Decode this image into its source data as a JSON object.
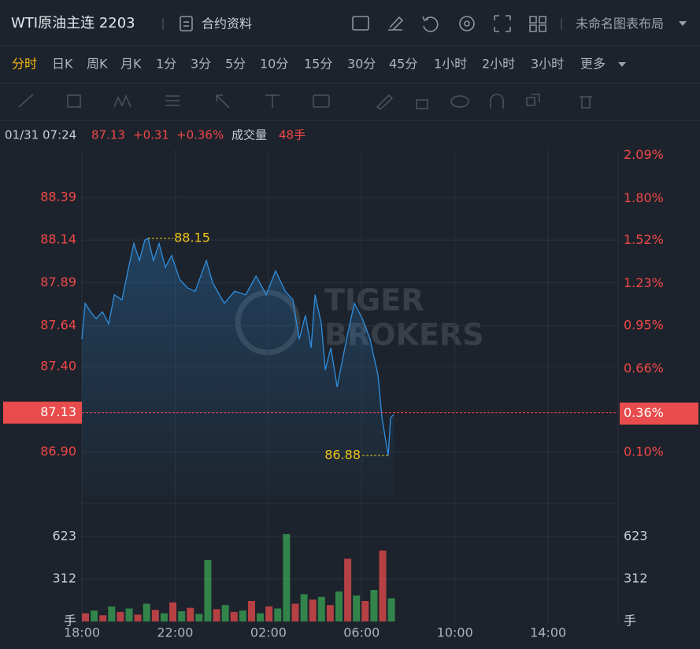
{
  "header": {
    "title": "WTI原油主连 2203",
    "contract_info": "合约资料",
    "layout_name": "未命名图表布局"
  },
  "timeframes": {
    "items": [
      "分时",
      "日K",
      "周K",
      "月K",
      "1分",
      "3分",
      "5分",
      "10分",
      "15分",
      "30分",
      "45分",
      "1小时",
      "2小时",
      "3小时",
      "更多"
    ],
    "active": 0
  },
  "info_bar": {
    "datetime": "01/31 07:24",
    "price": "87.13",
    "change": "+0.31",
    "change_pct": "+0.36%",
    "volume_label": "成交量",
    "volume": "48手"
  },
  "watermark": {
    "line1": "TIGER",
    "line2": "BROKERS"
  },
  "chart_data": [
    {
      "type": "line",
      "color": "#2e8fe0",
      "x": [
        0,
        0.14,
        0.37,
        0.61,
        0.88,
        1.15,
        1.39,
        1.72,
        1.96,
        2.23,
        2.47,
        2.7,
        2.84,
        3.07,
        3.31,
        3.58,
        3.85,
        4.19,
        4.53,
        4.86,
        5.34,
        5.61,
        6.11,
        6.55,
        7.03,
        7.47,
        7.91,
        8.31,
        8.72,
        9.05,
        9.32,
        9.59,
        9.83,
        10.0,
        10.27,
        10.44,
        10.68,
        10.95,
        11.28,
        11.49,
        11.69,
        12.03,
        12.36,
        12.7,
        12.87,
        13.04,
        13.14,
        13.24,
        13.38
      ],
      "values": [
        87.56,
        87.77,
        87.72,
        87.68,
        87.72,
        87.65,
        87.82,
        87.79,
        87.95,
        88.12,
        88.02,
        88.14,
        88.15,
        88.02,
        88.12,
        87.98,
        88.05,
        87.91,
        87.86,
        87.84,
        88.02,
        87.89,
        87.77,
        87.84,
        87.82,
        87.93,
        87.82,
        87.96,
        87.84,
        87.79,
        87.56,
        87.7,
        87.51,
        87.82,
        87.65,
        87.38,
        87.51,
        87.28,
        87.51,
        87.65,
        87.77,
        87.68,
        87.56,
        87.35,
        87.1,
        86.96,
        86.88,
        87.1,
        87.12
      ],
      "xlim": [
        0,
        23
      ],
      "ylim": [
        86.645,
        88.67
      ],
      "yticks": [
        {
          "value": 86.9,
          "label": "86.90"
        },
        {
          "value": 87.4,
          "label": "87.40"
        },
        87.64,
        87.89,
        88.14,
        88.39
      ],
      "y2lim": [
        -0.19,
        2.13
      ],
      "y2ticks": [
        {
          "value": 0.1,
          "label": "0.10%"
        },
        {
          "value": 0.66,
          "label": "0.66%"
        },
        {
          "value": 0.95,
          "label": "0.95%"
        },
        {
          "value": 1.23,
          "label": "1.23%"
        },
        {
          "value": 1.52,
          "label": "1.52%"
        },
        {
          "value": 1.8,
          "label": "1.80%"
        },
        {
          "value": 2.09,
          "label": "2.09%"
        }
      ],
      "last_price": 87.13,
      "last_price_pct": {
        "value": 0.36,
        "label": "0.36%"
      },
      "max": {
        "x": 2.84,
        "value": 88.15
      },
      "min": {
        "x": 13.14,
        "value": 86.88
      },
      "grid": true
    },
    {
      "type": "bar",
      "unit": "手",
      "x": [
        0,
        0.375,
        0.75,
        1.125,
        1.5,
        1.875,
        2.25,
        2.625,
        3,
        3.375,
        3.75,
        4.125,
        4.5,
        4.875,
        5.25,
        5.625,
        6,
        6.375,
        6.75,
        7.125,
        7.5,
        7.875,
        8.25,
        8.625,
        9,
        9.375,
        9.75,
        10.125,
        10.5,
        10.875,
        11.25,
        11.625,
        12,
        12.375,
        12.75,
        13.125
      ],
      "values": [
        60,
        80,
        45,
        110,
        70,
        95,
        50,
        130,
        85,
        60,
        140,
        75,
        100,
        55,
        450,
        90,
        120,
        70,
        80,
        150,
        60,
        110,
        95,
        640,
        130,
        200,
        160,
        180,
        120,
        220,
        460,
        190,
        150,
        230,
        520,
        170
      ],
      "colors": [
        "#e84c4c",
        "#3aa655",
        "#e84c4c",
        "#3aa655",
        "#e84c4c",
        "#3aa655",
        "#e84c4c",
        "#3aa655",
        "#e84c4c",
        "#3aa655",
        "#e84c4c",
        "#3aa655",
        "#e84c4c",
        "#3aa655",
        "#3aa655",
        "#e84c4c",
        "#3aa655",
        "#e84c4c",
        "#3aa655",
        "#e84c4c",
        "#3aa655",
        "#e84c4c",
        "#3aa655",
        "#3aa655",
        "#e84c4c",
        "#3aa655",
        "#e84c4c",
        "#3aa655",
        "#e84c4c",
        "#3aa655",
        "#e84c4c",
        "#3aa655",
        "#e84c4c",
        "#3aa655",
        "#e84c4c",
        "#3aa655"
      ],
      "xlim": [
        0,
        23
      ],
      "xticks": [
        {
          "value": 0,
          "label": "18:00"
        },
        {
          "value": 4,
          "label": "22:00"
        },
        {
          "value": 8,
          "label": "02:00"
        },
        {
          "value": 12,
          "label": "06:00"
        },
        {
          "value": 16,
          "label": "10:00"
        },
        {
          "value": 20,
          "label": "14:00"
        }
      ],
      "ylim": [
        0,
        807
      ],
      "yticks": [
        312,
        623
      ],
      "grid": true
    }
  ]
}
